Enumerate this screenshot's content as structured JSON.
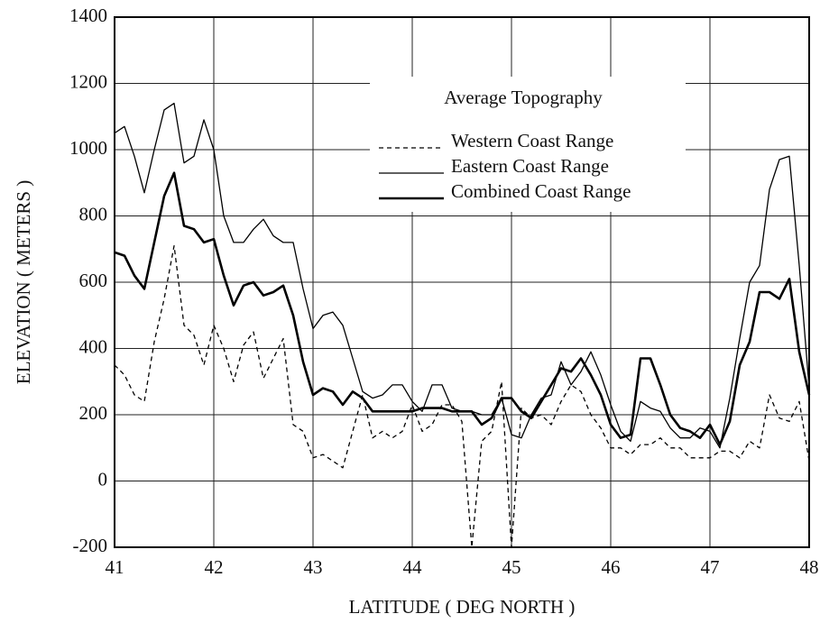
{
  "chart_data": {
    "type": "line",
    "xlabel": "LATITUDE ( DEG NORTH )",
    "ylabel": "ELEVATION ( METERS )",
    "legend_title": "Average Topography",
    "legend": "upper right",
    "grid": true,
    "xlim": [
      41,
      48
    ],
    "xticks": [
      41,
      42,
      43,
      44,
      45,
      46,
      47,
      48
    ],
    "ylim": [
      -200,
      1400
    ],
    "yticks": [
      -200,
      0,
      200,
      400,
      600,
      800,
      1000,
      1200,
      1400
    ],
    "x": [
      41,
      41.1,
      41.2,
      41.3,
      41.4,
      41.5,
      41.6,
      41.7,
      41.8,
      41.9,
      42,
      42.1,
      42.2,
      42.3,
      42.4,
      42.5,
      42.6,
      42.7,
      42.8,
      42.9,
      43,
      43.1,
      43.2,
      43.3,
      43.4,
      43.5,
      43.6,
      43.7,
      43.8,
      43.9,
      44,
      44.1,
      44.2,
      44.3,
      44.4,
      44.5,
      44.6,
      44.7,
      44.8,
      44.9,
      45,
      45.1,
      45.2,
      45.3,
      45.4,
      45.5,
      45.6,
      45.7,
      45.8,
      45.9,
      46,
      46.1,
      46.2,
      46.3,
      46.4,
      46.5,
      46.6,
      46.7,
      46.8,
      46.9,
      47,
      47.1,
      47.2,
      47.3,
      47.4,
      47.5,
      47.6,
      47.7,
      47.8,
      47.9,
      48
    ],
    "series": [
      {
        "name": "Western Coast Range",
        "color": "#000000",
        "linestyle": "dashed",
        "linewidth": 1.3,
        "values": [
          350,
          320,
          260,
          240,
          420,
          550,
          710,
          470,
          440,
          350,
          470,
          400,
          300,
          410,
          450,
          310,
          370,
          430,
          170,
          150,
          70,
          80,
          60,
          40,
          150,
          260,
          130,
          150,
          130,
          150,
          230,
          150,
          170,
          230,
          230,
          180,
          -200,
          120,
          150,
          300,
          -200,
          220,
          190,
          200,
          170,
          240,
          290,
          270,
          200,
          160,
          100,
          100,
          80,
          110,
          110,
          130,
          100,
          100,
          70,
          70,
          70,
          90,
          90,
          70,
          120,
          100,
          260,
          190,
          180,
          240,
          60
        ]
      },
      {
        "name": "Eastern Coast Range",
        "color": "#000000",
        "linestyle": "solid",
        "linewidth": 1.3,
        "values": [
          1050,
          1070,
          980,
          870,
          1000,
          1120,
          1140,
          960,
          980,
          1090,
          1000,
          800,
          720,
          720,
          760,
          790,
          740,
          720,
          720,
          580,
          460,
          500,
          510,
          470,
          370,
          270,
          250,
          260,
          290,
          290,
          240,
          210,
          290,
          290,
          220,
          210,
          210,
          200,
          200,
          250,
          140,
          130,
          200,
          250,
          260,
          360,
          290,
          330,
          390,
          320,
          230,
          150,
          120,
          240,
          220,
          210,
          160,
          130,
          130,
          160,
          150,
          100,
          250,
          430,
          600,
          650,
          880,
          970,
          980,
          650,
          280
        ]
      },
      {
        "name": "Combined Coast Range",
        "color": "#000000",
        "linestyle": "solid",
        "linewidth": 2.6,
        "values": [
          690,
          680,
          620,
          580,
          720,
          860,
          930,
          770,
          760,
          720,
          730,
          620,
          530,
          590,
          600,
          560,
          570,
          590,
          500,
          360,
          260,
          280,
          270,
          230,
          270,
          250,
          210,
          210,
          210,
          210,
          210,
          220,
          220,
          220,
          210,
          210,
          210,
          170,
          190,
          250,
          250,
          210,
          190,
          240,
          290,
          340,
          330,
          370,
          320,
          260,
          170,
          130,
          140,
          370,
          370,
          290,
          200,
          160,
          150,
          130,
          170,
          110,
          180,
          350,
          420,
          570,
          570,
          550,
          610,
          390,
          260
        ]
      }
    ]
  }
}
